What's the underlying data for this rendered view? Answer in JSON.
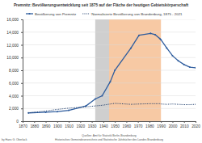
{
  "chart_data": {
    "type": "line",
    "title": "Premnitz: Bevölkerungsentwicklung seit 1875 auf der Fläche der heutigen Gebietskörperschaft",
    "x": [
      1875,
      1890,
      1900,
      1910,
      1925,
      1933,
      1939,
      1946,
      1950,
      1964,
      1971,
      1981,
      1985,
      1989,
      1990,
      1995,
      2000,
      2005,
      2010,
      2015,
      2020,
      2021
    ],
    "series": [
      {
        "name": "Bevölkerung von Premnitz",
        "color": "#2f5d9e",
        "marker": "circle",
        "line_style": "solid",
        "values": [
          1300,
          1400,
          1500,
          1700,
          2400,
          3500,
          4000,
          6200,
          8000,
          11500,
          13500,
          13800,
          13600,
          13000,
          12800,
          11500,
          10300,
          9500,
          8900,
          8500,
          8400,
          8300
        ]
      },
      {
        "name": "Normalisierte Bevölkerung von Brandenburg, 1875 - 2021",
        "color": "#1a3a6a",
        "line_style": "dotted",
        "values": [
          1300,
          1600,
          1850,
          2050,
          2250,
          2400,
          2500,
          2700,
          2800,
          2650,
          2700,
          2750,
          2750,
          2750,
          2700,
          2650,
          2700,
          2650,
          2600,
          2600,
          2650,
          2650
        ]
      }
    ],
    "bands": [
      {
        "start": 1933,
        "end": 1945,
        "color": "#cfcfcf"
      },
      {
        "start": 1945,
        "end": 1990,
        "color": "#f7c9a4"
      }
    ],
    "xlim": [
      1870,
      2020
    ],
    "xticks": [
      1870,
      1880,
      1890,
      1900,
      1910,
      1920,
      1930,
      1940,
      1950,
      1960,
      1970,
      1980,
      1990,
      2000,
      2010,
      2020
    ],
    "ylim": [
      0,
      16000
    ],
    "yticks": [
      0,
      {
        "value": 2000,
        "label": "2,000"
      },
      {
        "value": 4000,
        "label": "4,000"
      },
      {
        "value": 6000,
        "label": "6,000"
      },
      {
        "value": 8000,
        "label": "8,000"
      },
      {
        "value": 10000,
        "label": "10,000"
      },
      {
        "value": 12000,
        "label": "12,000"
      },
      {
        "value": 14000,
        "label": "14,000"
      },
      {
        "value": 16000,
        "label": "16,000"
      }
    ],
    "grid": true,
    "legend": "top",
    "annotations": [
      "Quellen: Amt für Statistik Berlin-Brandenburg",
      "Historisches Gemeindeverzeichnis und Statistische Jahrbücher des Landes Brandenburg",
      "by Hans G. Oberlack"
    ]
  }
}
